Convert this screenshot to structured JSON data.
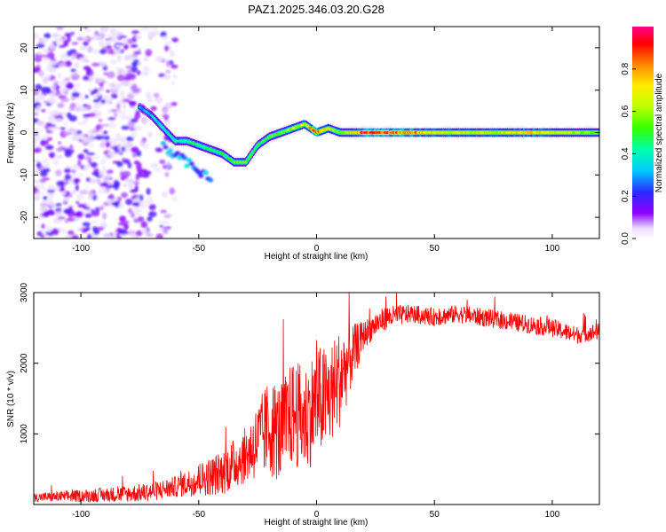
{
  "chart_data": [
    {
      "type": "heatmap",
      "title": "PAZ1.2025.346.03.20.G28",
      "xlabel": "Height of straight line (km)",
      "ylabel": "Frequency (Hz)",
      "xlim": [
        -120,
        120
      ],
      "ylim": [
        -25,
        25
      ],
      "x_ticks": [
        -100,
        -50,
        0,
        50,
        100
      ],
      "y_ticks": [
        -20,
        -10,
        0,
        10,
        20
      ],
      "grid": false,
      "colorbar": {
        "label": "Normalized spectral amplitude",
        "range": [
          0,
          1
        ],
        "ticks": [
          "0.0",
          "0.2",
          "0.4",
          "0.6",
          "0.8"
        ],
        "colors": [
          "#ffffff",
          "#9000ff",
          "#2a2aff",
          "#00ccff",
          "#00ff66",
          "#aaff00",
          "#ffee00",
          "#ff8800",
          "#ff0000",
          "#ff0088"
        ]
      },
      "ridge": {
        "x": [
          -75,
          -70,
          -65,
          -60,
          -55,
          -50,
          -45,
          -40,
          -35,
          -30,
          -25,
          -20,
          -15,
          -10,
          -5,
          0,
          5,
          10,
          15,
          20,
          30,
          40,
          50,
          60,
          70,
          80,
          90,
          100,
          110,
          120
        ],
        "y": [
          6,
          4,
          1,
          -2,
          -2,
          -3,
          -4,
          -5,
          -7,
          -7,
          -3,
          -1,
          0,
          1,
          2,
          0,
          1,
          0,
          0,
          0,
          0,
          0,
          0,
          0,
          0,
          0,
          0,
          0,
          0,
          0
        ],
        "amplitude": [
          0.3,
          0.35,
          0.4,
          0.45,
          0.5,
          0.5,
          0.5,
          0.5,
          0.6,
          0.55,
          0.5,
          0.55,
          0.6,
          0.65,
          0.7,
          0.95,
          0.7,
          0.6,
          0.7,
          0.98,
          0.95,
          0.85,
          0.75,
          0.7,
          0.7,
          0.7,
          0.8,
          0.7,
          0.65,
          0.6
        ]
      },
      "secondary_branch": {
        "x": [
          -65,
          -60,
          -55,
          -50,
          -45
        ],
        "y": [
          -3,
          -5,
          -7,
          -9,
          -11
        ],
        "amplitude": [
          0.3,
          0.35,
          0.35,
          0.35,
          0.3
        ]
      }
    },
    {
      "type": "line",
      "xlabel": "Height of straight line (km)",
      "ylabel": "SNR (10 * v/v)",
      "xlim": [
        -120,
        120
      ],
      "ylim": [
        0,
        3000
      ],
      "x_ticks": [
        -100,
        -50,
        0,
        50,
        100
      ],
      "y_ticks": [
        1000,
        2000,
        3000
      ],
      "grid": false,
      "color": "#ff0000",
      "envelope": {
        "x": [
          -120,
          -100,
          -80,
          -70,
          -60,
          -50,
          -40,
          -30,
          -25,
          -20,
          -15,
          -10,
          -5,
          0,
          5,
          10,
          15,
          20,
          25,
          30,
          40,
          50,
          60,
          70,
          80,
          90,
          100,
          110,
          120
        ],
        "y": [
          100,
          120,
          150,
          180,
          250,
          350,
          450,
          700,
          900,
          1100,
          1000,
          1300,
          1200,
          1450,
          1500,
          1800,
          2100,
          2400,
          2550,
          2650,
          2700,
          2650,
          2700,
          2650,
          2600,
          2550,
          2500,
          2400,
          2450
        ]
      },
      "noise_amplitude": {
        "x": [
          -120,
          -60,
          -30,
          -20,
          0,
          10,
          20,
          40,
          100,
          120
        ],
        "y": [
          60,
          150,
          400,
          700,
          800,
          700,
          200,
          130,
          130,
          120
        ]
      }
    }
  ]
}
